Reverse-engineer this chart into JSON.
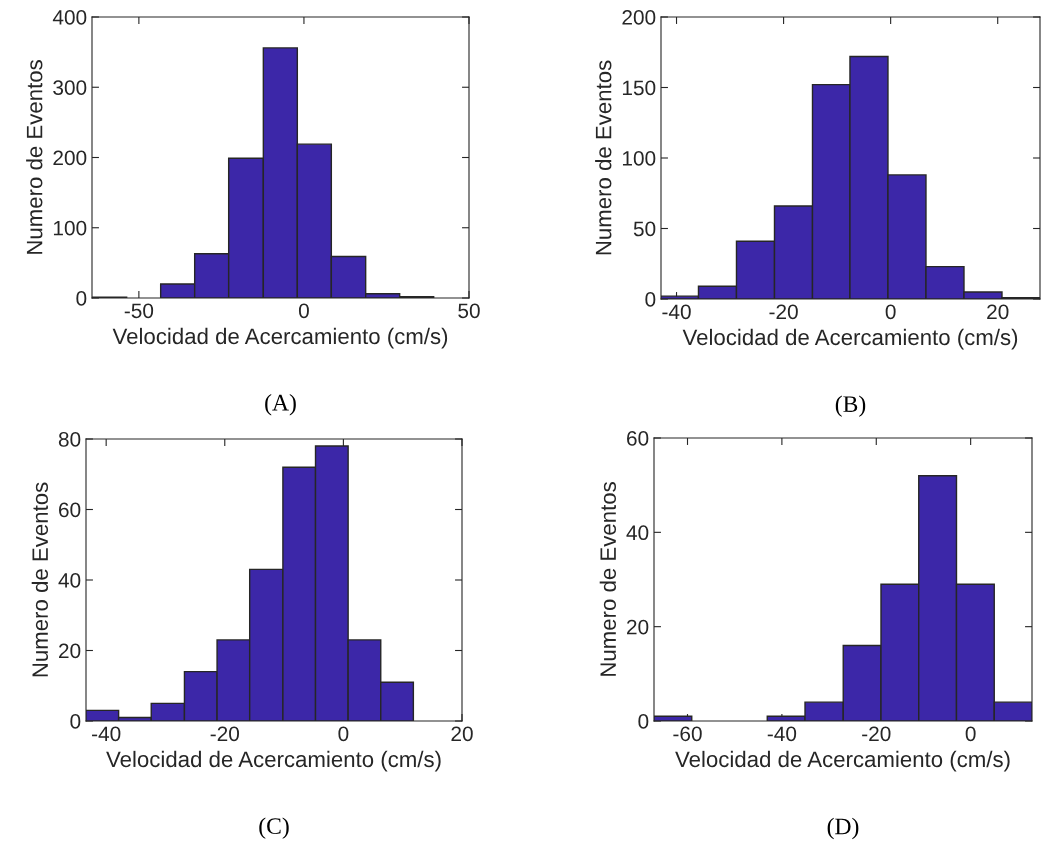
{
  "chart_data": [
    {
      "type": "histogram",
      "xlabel": "Velocidad de Acercamiento (cm/s)",
      "ylabel": "Numero de Eventos",
      "annotations": [
        "(A)"
      ],
      "color": "#3c27a8",
      "grid": false,
      "bins": [
        -64.2,
        -53.7,
        -43.4,
        -33.1,
        -22.8,
        -12.3,
        -2.0,
        8.3,
        18.7,
        29.0,
        39.3
      ],
      "values": [
        1,
        0,
        20,
        63,
        199,
        356,
        219,
        59,
        6,
        2
      ],
      "xlim": [
        -64.2,
        50
      ],
      "xticks": [
        -50,
        0,
        50
      ],
      "ylim": [
        0,
        400
      ],
      "yticks": [
        0,
        100,
        200,
        300,
        400
      ]
    },
    {
      "type": "histogram",
      "xlabel": "Velocidad de Acercamiento (cm/s)",
      "ylabel": "Numero de Eventos",
      "annotations": [
        "(B)"
      ],
      "color": "#3c27a8",
      "grid": false,
      "bins": [
        -42.9,
        -35.9,
        -28.8,
        -21.7,
        -14.6,
        -7.6,
        -0.5,
        6.6,
        13.7,
        20.8,
        27.9
      ],
      "values": [
        2,
        9,
        41,
        66,
        152,
        172,
        88,
        23,
        5,
        1
      ],
      "xlim": [
        -42.9,
        27.9
      ],
      "xticks": [
        -40,
        -20,
        0,
        20
      ],
      "ylim": [
        0,
        200
      ],
      "yticks": [
        0,
        50,
        100,
        150,
        200
      ]
    },
    {
      "type": "histogram",
      "xlabel": "Velocidad de Acercamiento (cm/s)",
      "ylabel": "Numero de Eventos",
      "annotations": [
        "(C)"
      ],
      "color": "#3c27a8",
      "grid": false,
      "bins": [
        -43.4,
        -37.9,
        -32.4,
        -26.8,
        -21.3,
        -15.8,
        -10.2,
        -4.7,
        0.8,
        6.3,
        11.8
      ],
      "values": [
        3,
        1,
        5,
        14,
        23,
        43,
        72,
        78,
        23,
        11
      ],
      "xlim": [
        -43.4,
        20
      ],
      "xticks": [
        -40,
        -20,
        0,
        20
      ],
      "ylim": [
        0,
        80
      ],
      "yticks": [
        0,
        20,
        40,
        60,
        80
      ]
    },
    {
      "type": "histogram",
      "xlabel": "Velocidad de Acercamiento (cm/s)",
      "ylabel": "Numero de Eventos",
      "annotations": [
        "(D)"
      ],
      "color": "#3c27a8",
      "grid": false,
      "bins": [
        -67.1,
        -59.1,
        -51.1,
        -43.1,
        -35.1,
        -27.0,
        -19.0,
        -11.0,
        -3.0,
        5.0,
        13.0
      ],
      "values": [
        1,
        0,
        0,
        1,
        4,
        16,
        29,
        52,
        29,
        4
      ],
      "xlim": [
        -67.1,
        13.0
      ],
      "xticks": [
        -60,
        -40,
        -20,
        0
      ],
      "ylim": [
        0,
        60
      ],
      "yticks": [
        0,
        20,
        40,
        60
      ]
    }
  ]
}
